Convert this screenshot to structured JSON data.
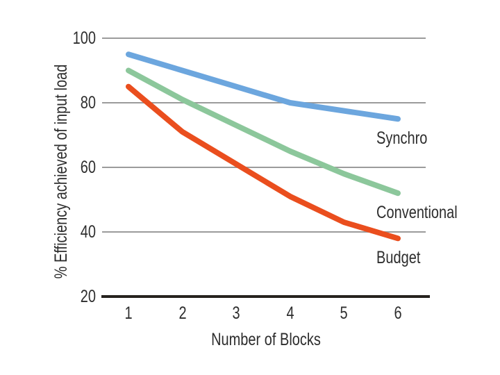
{
  "figure": {
    "background": "#ffffff",
    "text_color": "#2d2d2d",
    "gridline_color": "#9b9b9b",
    "axis_color": "#26221e"
  },
  "chart_data": {
    "type": "line",
    "title": "",
    "xlabel": "Number of Blocks",
    "ylabel": "% Efficiency achieved of input load",
    "x": [
      1,
      2,
      3,
      4,
      5,
      6
    ],
    "xtick_labels": [
      "1",
      "2",
      "3",
      "4",
      "5",
      "6"
    ],
    "yticks": [
      100,
      80,
      60,
      40,
      20
    ],
    "ytick_labels": [
      "100",
      "80",
      "60",
      "40",
      "20"
    ],
    "ylim": [
      20,
      100
    ],
    "gridline_values": [
      100,
      80,
      60,
      40
    ],
    "grid": "horizontal",
    "legend_position": "inline-right-of-lines",
    "line_width": 8,
    "series": [
      {
        "name": "Synchro",
        "color": "#6ca6de",
        "values": [
          95,
          90,
          85,
          80,
          77.5,
          75
        ]
      },
      {
        "name": "Conventional",
        "color": "#8cc79b",
        "values": [
          90,
          81,
          73,
          65,
          58,
          52
        ]
      },
      {
        "name": "Budget",
        "color": "#ea4e1e",
        "values": [
          85,
          71,
          61,
          51,
          43,
          38
        ]
      }
    ]
  }
}
